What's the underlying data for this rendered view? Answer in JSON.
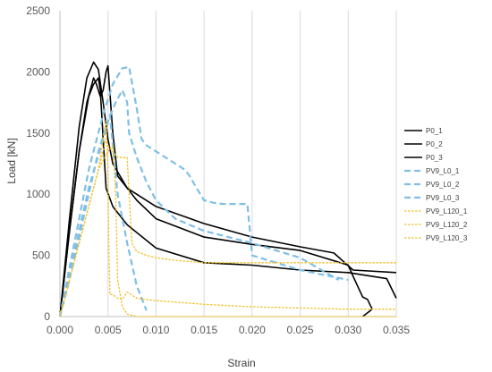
{
  "chart_data": {
    "type": "line",
    "title": "",
    "xlabel": "Strain",
    "ylabel": "Load [kN]",
    "xlim": [
      0,
      0.035
    ],
    "ylim": [
      0,
      2500
    ],
    "xticks": [
      0,
      0.005,
      0.01,
      0.015,
      0.02,
      0.025,
      0.03,
      0.035
    ],
    "xtick_labels": [
      "0.000",
      "0.005",
      "0.010",
      "0.015",
      "0.020",
      "0.025",
      "0.030",
      "0.035"
    ],
    "yticks": [
      0,
      500,
      1000,
      1500,
      2000,
      2500
    ],
    "ytick_labels": [
      "0",
      "500",
      "1000",
      "1500",
      "2000",
      "2500"
    ],
    "grid": "vertical",
    "legend_position": "right",
    "series": [
      {
        "name": "P0_1",
        "color": "#000000",
        "style": "solid",
        "x": [
          0.0,
          0.001,
          0.002,
          0.0028,
          0.0035,
          0.004,
          0.0045,
          0.005,
          0.0055,
          0.007,
          0.01,
          0.015,
          0.02,
          0.025,
          0.0285,
          0.0305,
          0.035
        ],
        "y": [
          0,
          800,
          1550,
          1950,
          2080,
          2020,
          1750,
          1450,
          1250,
          1050,
          900,
          760,
          650,
          570,
          520,
          380,
          360
        ]
      },
      {
        "name": "P0_2",
        "color": "#000000",
        "style": "solid",
        "x": [
          0.0,
          0.001,
          0.002,
          0.0028,
          0.0035,
          0.0038,
          0.0042,
          0.0045,
          0.0048,
          0.005,
          0.0055,
          0.006,
          0.008,
          0.01,
          0.015,
          0.02,
          0.025,
          0.03,
          0.0305,
          0.0315,
          0.032,
          0.0325,
          0.0315
        ],
        "y": [
          0,
          700,
          1350,
          1750,
          1950,
          1900,
          1800,
          1850,
          2000,
          2050,
          1500,
          1150,
          950,
          800,
          650,
          590,
          540,
          420,
          330,
          160,
          140,
          60,
          0
        ]
      },
      {
        "name": "P0_3",
        "color": "#000000",
        "style": "solid",
        "x": [
          0.0,
          0.001,
          0.002,
          0.003,
          0.0035,
          0.004,
          0.0042,
          0.0048,
          0.0055,
          0.007,
          0.01,
          0.015,
          0.02,
          0.025,
          0.03,
          0.034,
          0.035
        ],
        "y": [
          0,
          700,
          1350,
          1800,
          1900,
          1950,
          1850,
          1050,
          900,
          750,
          560,
          440,
          420,
          380,
          360,
          310,
          150
        ]
      },
      {
        "name": "PV9_L0_1",
        "color": "#7fbfe6",
        "style": "dashed",
        "x": [
          0.0,
          0.001,
          0.002,
          0.003,
          0.0045,
          0.0055,
          0.0065,
          0.0072,
          0.008,
          0.0085,
          0.009,
          0.01,
          0.011,
          0.012,
          0.013,
          0.0135,
          0.014,
          0.015,
          0.016,
          0.017,
          0.0195,
          0.02,
          0.025,
          0.03
        ],
        "y": [
          0,
          400,
          800,
          1200,
          1650,
          1900,
          2030,
          2040,
          1700,
          1450,
          1400,
          1350,
          1300,
          1250,
          1200,
          1150,
          1080,
          950,
          930,
          920,
          920,
          500,
          380,
          300
        ]
      },
      {
        "name": "PV9_L0_2",
        "color": "#7fbfe6",
        "style": "dashed",
        "x": [
          0.0,
          0.001,
          0.002,
          0.003,
          0.004,
          0.005,
          0.0058,
          0.0065,
          0.007,
          0.0072,
          0.008,
          0.009,
          0.01,
          0.012,
          0.015,
          0.02,
          0.025,
          0.029
        ],
        "y": [
          0,
          300,
          650,
          1000,
          1350,
          1600,
          1750,
          1850,
          1750,
          1500,
          1300,
          1100,
          950,
          800,
          700,
          600,
          480,
          300
        ]
      },
      {
        "name": "PV9_L0_3",
        "color": "#7fbfe6",
        "style": "dashed",
        "x": [
          0.0,
          0.001,
          0.002,
          0.003,
          0.0045,
          0.0052,
          0.0055,
          0.006,
          0.007,
          0.008,
          0.009
        ],
        "y": [
          0,
          350,
          700,
          1050,
          1450,
          1650,
          1400,
          1000,
          600,
          250,
          50
        ]
      },
      {
        "name": "PV9_L120_1",
        "color": "#f2c12e",
        "style": "dotted",
        "x": [
          0.0,
          0.001,
          0.002,
          0.003,
          0.004,
          0.0048,
          0.005,
          0.0052,
          0.0055,
          0.006,
          0.0065,
          0.007,
          0.0072,
          0.0075,
          0.008,
          0.009,
          0.01,
          0.012,
          0.015,
          0.02,
          0.025,
          0.03,
          0.035
        ],
        "y": [
          0,
          300,
          600,
          900,
          1200,
          1450,
          1400,
          1380,
          1350,
          1300,
          1300,
          1300,
          1000,
          600,
          530,
          500,
          480,
          460,
          440,
          440,
          440,
          440,
          440
        ]
      },
      {
        "name": "PV9_L120_2",
        "color": "#f2c12e",
        "style": "dotted",
        "x": [
          0.0,
          0.001,
          0.002,
          0.003,
          0.004,
          0.0048,
          0.005,
          0.0051,
          0.0052,
          0.0055,
          0.006,
          0.0065,
          0.007,
          0.008,
          0.01,
          0.015,
          0.02,
          0.025,
          0.03,
          0.035
        ],
        "y": [
          0,
          300,
          600,
          900,
          1200,
          1600,
          1200,
          500,
          180,
          180,
          150,
          140,
          200,
          150,
          130,
          100,
          80,
          70,
          60,
          60
        ]
      },
      {
        "name": "PV9_L120_3",
        "color": "#f2c12e",
        "style": "dotted",
        "x": [
          0.0,
          0.001,
          0.002,
          0.003,
          0.004,
          0.005,
          0.0055,
          0.0058,
          0.006,
          0.0065,
          0.007,
          0.008,
          0.01,
          0.015,
          0.02,
          0.025,
          0.03,
          0.035
        ],
        "y": [
          0,
          300,
          600,
          900,
          1200,
          1350,
          1400,
          1000,
          300,
          80,
          20,
          0,
          0,
          0,
          0,
          0,
          0,
          0
        ]
      }
    ]
  }
}
